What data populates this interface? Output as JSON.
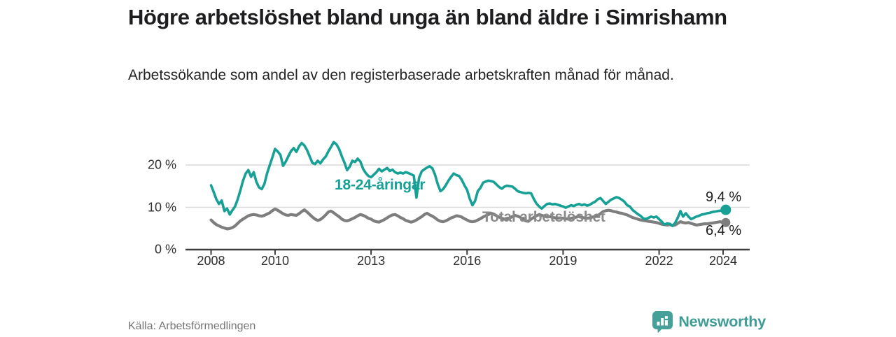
{
  "header": {
    "title": "Högre arbetslöshet bland unga än bland äldre i Simrishamn",
    "subtitle": "Arbetssökande som andel av den registerbaserade arbetskraften månad för månad."
  },
  "footer": {
    "source": "Källa: Arbetsförmedlingen",
    "brand": "Newsworthy",
    "brand_icon": "bar-chart-speech-bubble"
  },
  "colors": {
    "accent_teal": "#17A096",
    "line_gray": "#7E7E7E",
    "gridline": "#d9d9d9",
    "axis": "#3d3d3d",
    "end_label_text": "#1a1a1a",
    "brand_teal": "#3E9B95"
  },
  "chart_data": {
    "type": "line",
    "title": "Högre arbetslöshet bland unga än bland äldre i Simrishamn",
    "xlabel": "",
    "ylabel": "",
    "x_start_year": 2008,
    "x_step": "monthly",
    "x_end": "2024-02",
    "ylim": [
      0,
      26
    ],
    "grid": "horizontal",
    "legend_position": "inline-labels",
    "xticks": [
      {
        "x": 2008,
        "label": "2008"
      },
      {
        "x": 2010,
        "label": "2010"
      },
      {
        "x": 2013,
        "label": "2013"
      },
      {
        "x": 2016,
        "label": "2016"
      },
      {
        "x": 2019,
        "label": "2019"
      },
      {
        "x": 2022,
        "label": "2022"
      },
      {
        "x": 2024,
        "label": "2024"
      }
    ],
    "yticks": [
      {
        "v": 0,
        "label": "0 %"
      },
      {
        "v": 10,
        "label": "10 %"
      },
      {
        "v": 20,
        "label": "20 %"
      }
    ],
    "series": [
      {
        "name": "Total arbetslöshet",
        "color": "#7E7E7E",
        "end_label": "6,4 %",
        "end_value": 6.4,
        "values": [
          7.0,
          6.4,
          5.9,
          5.6,
          5.3,
          5.1,
          4.9,
          5.0,
          5.2,
          5.6,
          6.2,
          6.8,
          7.2,
          7.6,
          8.0,
          8.2,
          8.3,
          8.2,
          8.0,
          7.9,
          8.1,
          8.4,
          8.7,
          9.2,
          9.6,
          9.3,
          8.9,
          8.5,
          8.2,
          8.1,
          8.3,
          8.2,
          8.1,
          8.5,
          9.0,
          9.4,
          8.9,
          8.3,
          7.7,
          7.2,
          6.9,
          7.1,
          7.6,
          8.2,
          8.9,
          9.1,
          8.7,
          8.2,
          7.8,
          7.2,
          6.9,
          6.8,
          7.0,
          7.3,
          7.6,
          8.0,
          8.3,
          8.1,
          7.8,
          7.4,
          7.2,
          6.8,
          6.6,
          6.5,
          6.8,
          7.1,
          7.5,
          7.9,
          8.2,
          8.3,
          8.0,
          7.6,
          7.3,
          6.9,
          6.7,
          6.5,
          6.7,
          7.0,
          7.4,
          7.8,
          8.3,
          8.6,
          8.2,
          7.9,
          7.5,
          7.0,
          6.7,
          6.6,
          6.8,
          7.1,
          7.5,
          7.7,
          8.0,
          7.9,
          7.7,
          7.3,
          7.0,
          6.7,
          6.6,
          6.7,
          7.0,
          7.3,
          7.7,
          8.0,
          8.3,
          8.6,
          8.4,
          8.0,
          7.7,
          7.4,
          7.2,
          7.3,
          7.5,
          7.8,
          8.1,
          7.9,
          7.6,
          7.2,
          6.8,
          6.7,
          7.2,
          7.6,
          8.0,
          8.3,
          8.1,
          7.9,
          7.7,
          7.8,
          7.6,
          7.5,
          7.4,
          7.5,
          7.4,
          7.3,
          7.2,
          7.4,
          7.5,
          7.7,
          7.8,
          7.6,
          7.5,
          7.4,
          7.5,
          7.7,
          7.8,
          8.0,
          8.5,
          9.0,
          9.2,
          9.3,
          9.2,
          9.0,
          8.9,
          8.7,
          8.6,
          8.4,
          8.2,
          7.9,
          7.6,
          7.4,
          7.2,
          7.0,
          6.9,
          6.8,
          6.7,
          6.6,
          6.5,
          6.4,
          6.2,
          6.0,
          5.9,
          5.8,
          5.9,
          5.7,
          5.8,
          6.2,
          6.6,
          6.4,
          6.3,
          6.4,
          6.2,
          6.0,
          5.8,
          5.9,
          6.0,
          6.1,
          6.1,
          6.2,
          6.3,
          6.4,
          6.5,
          6.6,
          6.3,
          6.4
        ]
      },
      {
        "name": "18-24-åringar",
        "color": "#17A096",
        "end_label": "9,4 %",
        "end_value": 9.4,
        "values": [
          15.2,
          13.6,
          11.9,
          10.8,
          11.6,
          9.1,
          9.7,
          8.3,
          9.3,
          10.2,
          11.9,
          14.0,
          16.3,
          18.0,
          18.8,
          17.2,
          18.3,
          16.0,
          14.7,
          14.3,
          15.5,
          18.0,
          19.9,
          21.8,
          23.8,
          23.2,
          22.4,
          19.8,
          20.8,
          22.1,
          23.3,
          24.0,
          23.1,
          24.4,
          25.2,
          24.6,
          23.5,
          22.0,
          20.5,
          20.2,
          21.0,
          20.4,
          21.3,
          22.0,
          23.2,
          24.3,
          25.4,
          24.9,
          23.8,
          22.1,
          20.6,
          18.8,
          19.6,
          21.0,
          20.7,
          21.5,
          20.8,
          19.1,
          18.1,
          17.4,
          17.1,
          17.7,
          18.3,
          19.1,
          18.5,
          18.9,
          19.3,
          18.6,
          18.9,
          18.3,
          18.0,
          18.2,
          18.0,
          18.3,
          18.1,
          17.8,
          17.5,
          12.3,
          17.0,
          18.5,
          19.0,
          19.4,
          19.7,
          19.2,
          17.7,
          15.5,
          13.8,
          14.3,
          15.2,
          16.3,
          17.2,
          18.0,
          17.6,
          17.4,
          16.5,
          15.2,
          14.1,
          12.0,
          10.5,
          11.5,
          13.8,
          14.6,
          15.8,
          16.1,
          16.3,
          16.2,
          16.0,
          15.4,
          14.8,
          14.4,
          14.9,
          15.1,
          15.0,
          14.9,
          14.4,
          13.8,
          13.6,
          13.4,
          13.3,
          13.4,
          13.3,
          12.0,
          10.9,
          10.2,
          9.7,
          10.3,
          10.8,
          10.9,
          10.7,
          10.8,
          10.6,
          10.4,
          10.2,
          9.9,
          10.2,
          10.5,
          10.3,
          10.6,
          10.8,
          10.5,
          10.7,
          10.4,
          10.6,
          11.0,
          11.3,
          11.9,
          12.2,
          11.5,
          10.8,
          11.3,
          11.8,
          12.1,
          12.4,
          12.2,
          11.8,
          11.3,
          10.5,
          10.2,
          9.4,
          8.9,
          8.4,
          8.0,
          7.4,
          7.2,
          7.5,
          7.8,
          7.6,
          7.8,
          7.2,
          6.6,
          5.9,
          6.2,
          6.1,
          5.6,
          6.3,
          7.5,
          9.1,
          7.8,
          8.6,
          7.8,
          7.2,
          7.5,
          7.8,
          8.0,
          8.3,
          8.4,
          8.6,
          8.7,
          8.9,
          9.0,
          9.1,
          9.2,
          9.3,
          9.4
        ]
      }
    ]
  }
}
